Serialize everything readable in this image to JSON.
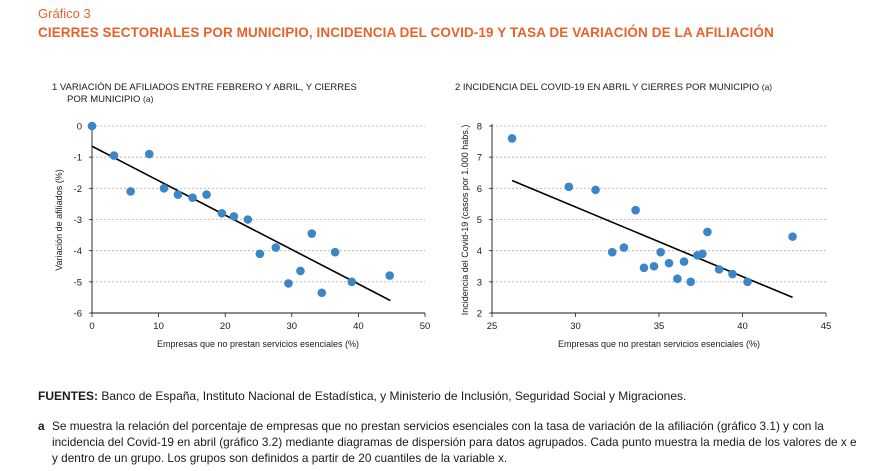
{
  "figure": {
    "kicker": "Gráfico 3",
    "title": "CIERRES SECTORIALES POR MUNICIPIO, INCIDENCIA DEL COVID-19 Y TASA DE VARIACIÓN DE LA AFILIACIÓN"
  },
  "colors": {
    "accent": "#e8622a",
    "points": "#3a86c8",
    "line": "#000000",
    "grid": "#b0b0b0"
  },
  "chart_data": [
    {
      "type": "scatter",
      "title_line1": "1  VARIACIÓN DE AFILIADOS ENTRE FEBRERO Y ABRIL, Y CIERRES",
      "title_line2": "POR MUNICIPIO",
      "title_suffix": "(a)",
      "xlabel": "Empresas que no prestan servicios esenciales (%)",
      "ylabel": "Variación de afiliados (%)",
      "xlim": [
        0,
        50
      ],
      "ylim": [
        -6,
        0
      ],
      "xticks": [
        "0",
        "10",
        "20",
        "30",
        "40",
        "50"
      ],
      "yticks": [
        "0",
        "-1",
        "-2",
        "-3",
        "-4",
        "-5",
        "-6"
      ],
      "grid": true,
      "points": [
        [
          0,
          0
        ],
        [
          3.3,
          -0.95
        ],
        [
          5.8,
          -2.1
        ],
        [
          8.6,
          -0.9
        ],
        [
          10.8,
          -2.0
        ],
        [
          12.9,
          -2.2
        ],
        [
          15.1,
          -2.3
        ],
        [
          17.2,
          -2.2
        ],
        [
          19.5,
          -2.8
        ],
        [
          21.3,
          -2.9
        ],
        [
          23.4,
          -3.0
        ],
        [
          25.2,
          -4.1
        ],
        [
          27.6,
          -3.9
        ],
        [
          29.5,
          -5.05
        ],
        [
          31.3,
          -4.65
        ],
        [
          33.0,
          -3.45
        ],
        [
          34.5,
          -5.35
        ],
        [
          36.5,
          -4.05
        ],
        [
          39.0,
          -5.0
        ],
        [
          44.7,
          -4.8
        ]
      ],
      "trend": [
        [
          0,
          -0.65
        ],
        [
          44.8,
          -5.6
        ]
      ]
    },
    {
      "type": "scatter",
      "title_line1": "2  INCIDENCIA DEL COVID-19 EN ABRIL Y CIERRES POR MUNICIPIO",
      "title_suffix": "(a)",
      "xlabel": "Empresas que no prestan servicios esenciales (%)",
      "ylabel": "Incidencia del Covid-19 (casos por 1.000 habs.)",
      "xlim": [
        25,
        45
      ],
      "ylim": [
        2,
        8
      ],
      "xticks": [
        "25",
        "30",
        "35",
        "40",
        "45"
      ],
      "yticks": [
        "8",
        "7",
        "6",
        "5",
        "4",
        "3",
        "2"
      ],
      "grid": true,
      "points": [
        [
          26.2,
          7.6
        ],
        [
          29.6,
          6.05
        ],
        [
          31.2,
          5.95
        ],
        [
          32.2,
          3.95
        ],
        [
          32.9,
          4.1
        ],
        [
          33.6,
          5.3
        ],
        [
          34.1,
          3.45
        ],
        [
          34.7,
          3.5
        ],
        [
          35.1,
          3.95
        ],
        [
          35.6,
          3.6
        ],
        [
          36.1,
          3.1
        ],
        [
          36.5,
          3.65
        ],
        [
          36.9,
          3.0
        ],
        [
          37.3,
          3.85
        ],
        [
          37.6,
          3.9
        ],
        [
          37.9,
          4.6
        ],
        [
          38.6,
          3.4
        ],
        [
          39.4,
          3.25
        ],
        [
          40.3,
          3.0
        ],
        [
          43.0,
          4.45
        ]
      ],
      "trend": [
        [
          26.2,
          6.25
        ],
        [
          43.0,
          2.5
        ]
      ]
    }
  ],
  "sources": {
    "label": "FUENTES:",
    "text": "Banco de España, Instituto Nacional de Estadística, y Ministerio de Inclusión, Seguridad Social y Migraciones."
  },
  "note": {
    "letter": "a",
    "text": "Se muestra la relación del porcentaje de empresas que no prestan servicios esenciales con la tasa de variación de la afiliación (gráfico 3.1) y con la incidencia del Covid-19 en abril (gráfico 3.2) mediante diagramas de dispersión para datos agrupados. Cada punto muestra la media de los valores de x e y dentro de un grupo. Los grupos son definidos a partir de 20 cuantiles de la variable x."
  }
}
